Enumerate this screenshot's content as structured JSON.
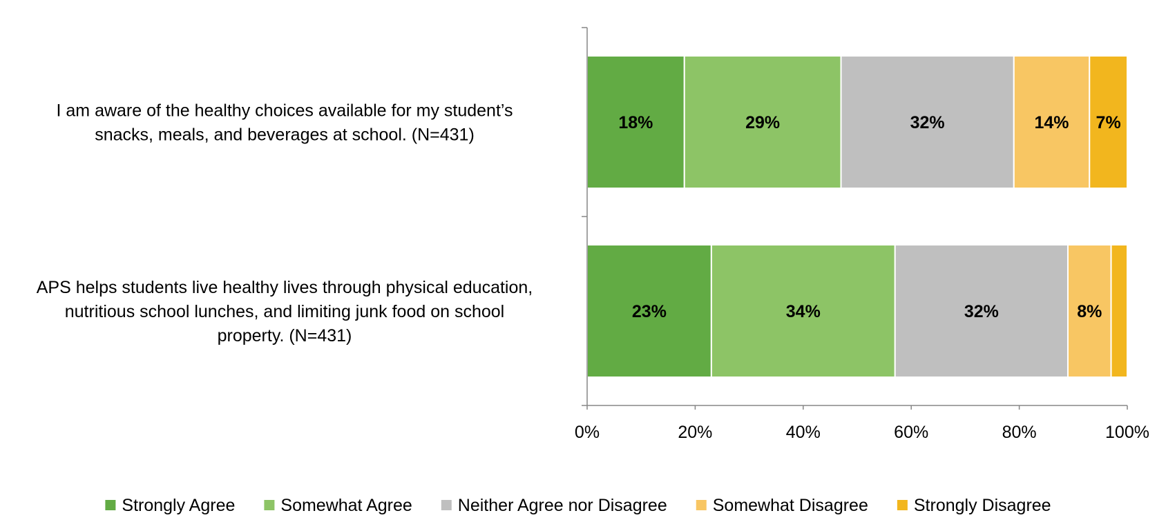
{
  "chart_data": {
    "type": "bar",
    "orientation": "horizontal",
    "stacked": true,
    "percent_stacked": true,
    "categories": [
      "I am aware of the healthy choices available for my student’s snacks, meals, and beverages at school. (N=431)",
      "APS helps students live healthy lives through physical education, nutritious school lunches, and limiting junk food on school property. (N=431)"
    ],
    "category_lines": [
      [
        "I am aware of the healthy choices available for my student’s",
        "snacks, meals, and beverages at school. (N=431)"
      ],
      [
        "APS helps students live healthy lives through physical education,",
        "nutritious school lunches, and limiting junk food on school",
        "property. (N=431)"
      ]
    ],
    "series": [
      {
        "name": "Strongly Agree",
        "color": "#62AB44",
        "values": [
          18,
          23
        ],
        "labels": [
          "18%",
          "23%"
        ]
      },
      {
        "name": "Somewhat Agree",
        "color": "#8DC466",
        "values": [
          29,
          34
        ],
        "labels": [
          "29%",
          "34%"
        ]
      },
      {
        "name": "Neither Agree nor Disagree",
        "color": "#BFBFBF",
        "values": [
          32,
          32
        ],
        "labels": [
          "32%",
          "32%"
        ]
      },
      {
        "name": "Somewhat Disagree",
        "color": "#F8C663",
        "values": [
          14,
          8
        ],
        "labels": [
          "14%",
          "8%"
        ]
      },
      {
        "name": "Strongly Disagree",
        "color": "#F2B61E",
        "values": [
          7,
          3
        ],
        "labels": [
          "7%",
          ""
        ]
      }
    ],
    "xlim": [
      0,
      100
    ],
    "xticks": [
      "0%",
      "20%",
      "40%",
      "60%",
      "80%",
      "100%"
    ],
    "title": "",
    "xlabel": "",
    "ylabel": "",
    "grid": false,
    "legend_position": "bottom"
  }
}
